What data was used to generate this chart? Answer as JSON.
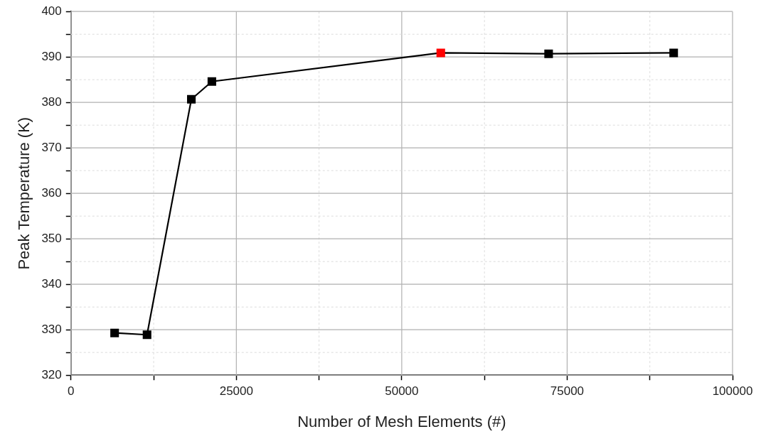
{
  "chart_data": {
    "type": "line",
    "xlabel": "Number of Mesh Elements (#)",
    "ylabel": "Peak Temperature (K)",
    "x": [
      6600,
      11500,
      18200,
      21300,
      55900,
      72200,
      91100
    ],
    "series": [
      {
        "color": "#000000",
        "colors": [
          "#000000",
          "#000000",
          "#000000",
          "#000000",
          "#ff0000",
          "#000000",
          "#000000"
        ],
        "values": [
          329.3,
          328.9,
          380.7,
          384.6,
          390.9,
          390.7,
          390.9
        ]
      }
    ],
    "xlim": [
      0,
      100000
    ],
    "xticks": [
      0,
      {
        "value": 12500,
        "label": null
      },
      25000,
      {
        "value": 37500,
        "label": null
      },
      50000,
      {
        "value": 62500,
        "label": null
      },
      75000,
      {
        "value": 87500,
        "label": null
      },
      100000
    ],
    "ylim": [
      320,
      400
    ],
    "yticks": [
      320,
      {
        "value": 325,
        "label": null
      },
      330,
      {
        "value": 335,
        "label": null
      },
      340,
      {
        "value": 345,
        "label": null
      },
      350,
      {
        "value": 355,
        "label": null
      },
      360,
      {
        "value": 365,
        "label": null
      },
      370,
      {
        "value": 375,
        "label": null
      },
      380,
      {
        "value": 385,
        "label": null
      },
      390,
      {
        "value": 395,
        "label": null
      },
      400
    ],
    "grid": true,
    "legend": false,
    "marker": "square",
    "line_style": "solid"
  }
}
